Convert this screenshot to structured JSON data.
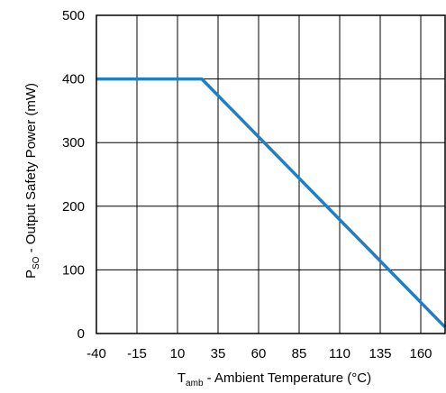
{
  "chart_data": {
    "type": "line",
    "xlabel": {
      "symbol": "T",
      "subscript": "amb",
      "text": " - Ambient Temperature (°C)"
    },
    "ylabel": {
      "symbol": "P",
      "subscript": "SO",
      "text": " - Output Safety Power (mW)"
    },
    "xlim": [
      -40,
      175
    ],
    "ylim": [
      0,
      500
    ],
    "x_ticks": [
      -40,
      -15,
      10,
      35,
      60,
      85,
      110,
      135,
      160
    ],
    "x_tick_labels": [
      "-40",
      "-15",
      "10",
      "35",
      "60",
      "85",
      "110",
      "135",
      "160"
    ],
    "y_ticks": [
      0,
      100,
      200,
      300,
      400,
      500
    ],
    "y_tick_labels": [
      "0",
      "100",
      "200",
      "300",
      "400",
      "500"
    ],
    "grid": true,
    "series": [
      {
        "color": "#1f7fc4",
        "x": [
          -40,
          25,
          175
        ],
        "y": [
          400,
          400,
          10
        ]
      }
    ]
  }
}
